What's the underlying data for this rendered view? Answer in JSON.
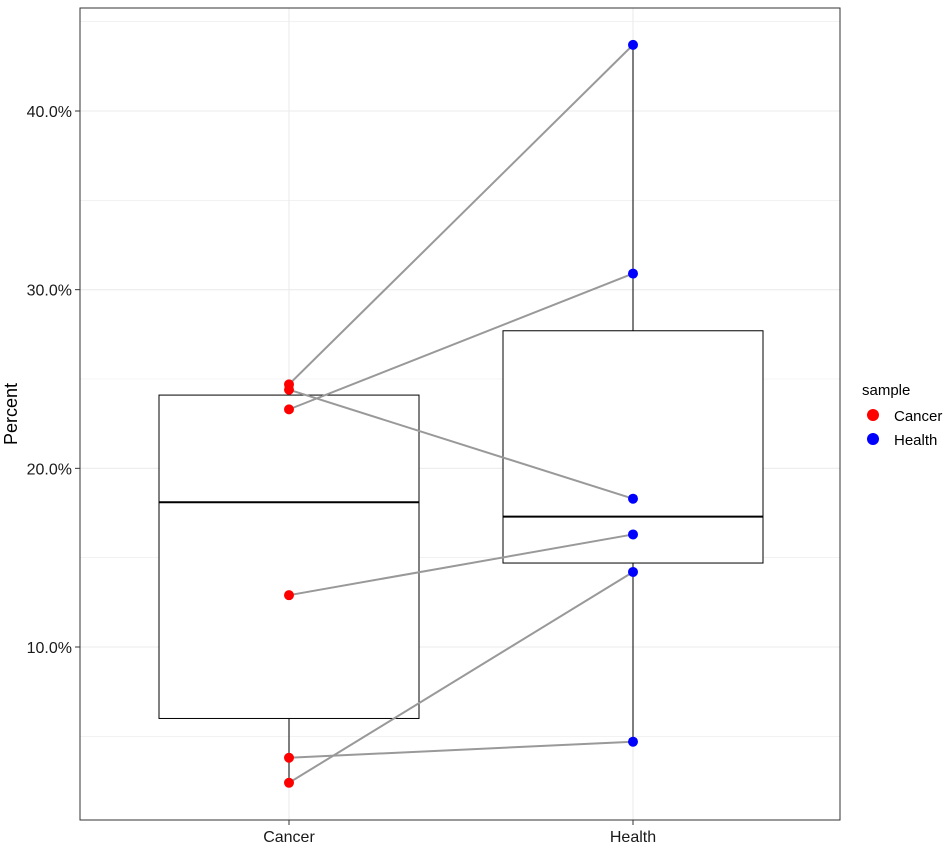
{
  "chart_data": {
    "type": "boxplot-paired",
    "ylabel": "Percent",
    "categories": [
      "Cancer",
      "Health"
    ],
    "ylim": [
      0.0,
      0.45
    ],
    "y_ticks": [
      0.1,
      0.2,
      0.3,
      0.4
    ],
    "y_tick_labels": [
      "10.0%",
      "20.0%",
      "30.0%",
      "40.0%"
    ],
    "grid": true,
    "legend": {
      "title": "sample",
      "position": "right",
      "entries": [
        {
          "label": "Cancer",
          "color": "#ff0000"
        },
        {
          "label": "Health",
          "color": "#0000ff"
        }
      ]
    },
    "boxes": [
      {
        "category": "Cancer",
        "whisker_low": 0.024,
        "q1": 0.06,
        "median": 0.181,
        "q3": 0.241,
        "whisker_high": 0.247
      },
      {
        "category": "Health",
        "whisker_low": 0.047,
        "q1": 0.147,
        "median": 0.173,
        "q3": 0.277,
        "whisker_high": 0.437
      }
    ],
    "pairs": [
      {
        "cancer": 0.247,
        "health": 0.437
      },
      {
        "cancer": 0.233,
        "health": 0.309
      },
      {
        "cancer": 0.244,
        "health": 0.183
      },
      {
        "cancer": 0.129,
        "health": 0.163
      },
      {
        "cancer": 0.024,
        "health": 0.142
      },
      {
        "cancer": 0.038,
        "health": 0.047
      }
    ],
    "colors": {
      "line": "#999999",
      "box": "#000000",
      "grid": "#ebebeb",
      "panel_border": "#333333"
    }
  }
}
